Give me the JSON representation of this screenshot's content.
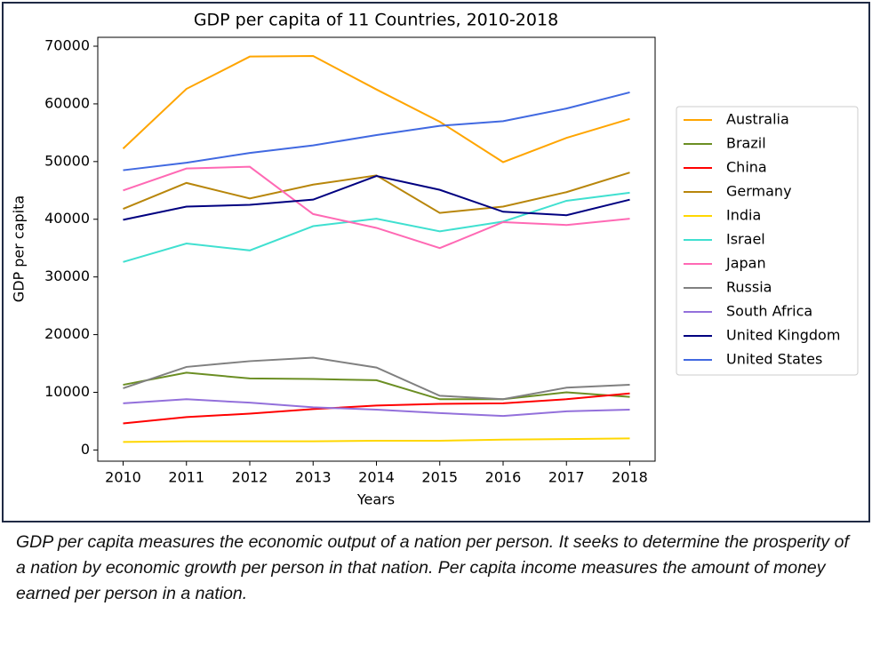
{
  "chart_data": {
    "type": "line",
    "title": "GDP per capita of 11 Countries, 2010-2018",
    "x_label": "Years",
    "y_label": "GDP per capita",
    "x": [
      2010,
      2011,
      2012,
      2013,
      2014,
      2015,
      2016,
      2017,
      2018
    ],
    "xlim": [
      2009.6,
      2018.4
    ],
    "xticks": [
      2010,
      2011,
      2012,
      2013,
      2014,
      2015,
      2016,
      2017,
      2018
    ],
    "ylim": [
      -1940,
      71540
    ],
    "yticks": [
      0,
      10000,
      20000,
      30000,
      40000,
      50000,
      60000,
      70000
    ],
    "grid": false,
    "legend": "right",
    "series": [
      {
        "name": "Australia",
        "color": "#ffa500",
        "values": [
          52250,
          62600,
          68200,
          68300,
          62500,
          56900,
          49900,
          54100,
          57400
        ]
      },
      {
        "name": "Brazil",
        "color": "#6b8e23",
        "values": [
          11300,
          13400,
          12400,
          12300,
          12100,
          8800,
          8800,
          10000,
          9200
        ]
      },
      {
        "name": "China",
        "color": "#ff0000",
        "values": [
          4600,
          5700,
          6300,
          7100,
          7700,
          8000,
          8100,
          8800,
          9800
        ]
      },
      {
        "name": "Germany",
        "color": "#b8860b",
        "values": [
          41800,
          46300,
          43600,
          46000,
          47600,
          41100,
          42200,
          44700,
          48100
        ]
      },
      {
        "name": "India",
        "color": "#ffd700",
        "values": [
          1400,
          1500,
          1500,
          1500,
          1600,
          1600,
          1800,
          1900,
          2000
        ]
      },
      {
        "name": "Israel",
        "color": "#40e0d0",
        "values": [
          32600,
          35800,
          34600,
          38800,
          40100,
          37900,
          39600,
          43200,
          44600
        ]
      },
      {
        "name": "Japan",
        "color": "#ff69b4",
        "values": [
          45000,
          48800,
          49100,
          40900,
          38500,
          35000,
          39500,
          39000,
          40100
        ]
      },
      {
        "name": "Russia",
        "color": "#808080",
        "values": [
          10700,
          14400,
          15400,
          16000,
          14300,
          9400,
          8800,
          10800,
          11300
        ]
      },
      {
        "name": "South Africa",
        "color": "#9370db",
        "values": [
          8100,
          8800,
          8200,
          7400,
          7000,
          6400,
          5900,
          6700,
          7000
        ]
      },
      {
        "name": "United Kingdom",
        "color": "#000080",
        "values": [
          39900,
          42200,
          42500,
          43400,
          47500,
          45100,
          41300,
          40700,
          43400
        ]
      },
      {
        "name": "United States",
        "color": "#4169e1",
        "values": [
          48500,
          49800,
          51500,
          52800,
          54600,
          56200,
          57000,
          59200,
          62000
        ]
      }
    ]
  },
  "caption": "GDP per capita measures the economic output of a nation per person. It seeks to determine the prosperity of a nation by economic growth per person in that nation. Per capita income measures the amount of money earned per person in a nation."
}
